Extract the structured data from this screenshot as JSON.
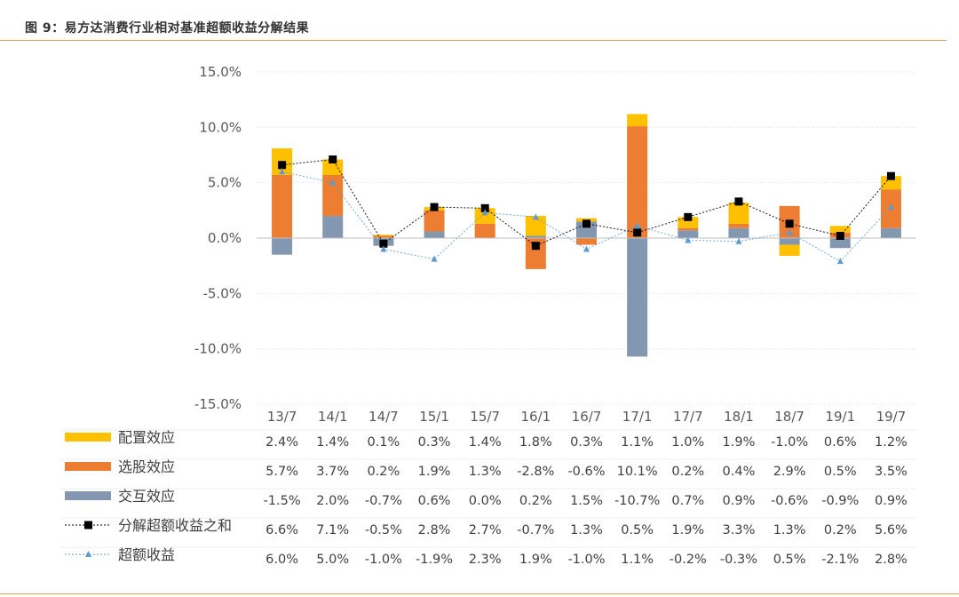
{
  "title": "图 9：易方达消费行业相对基准超额收益分解结果",
  "colors": {
    "allocation": "#ffc000",
    "selection": "#ed7d31",
    "interaction": "#8497b0",
    "decomposed_sum": "#000000",
    "excess_return": "#5b9bd5",
    "accent": "#f0a04b"
  },
  "chart_data": {
    "type": "bar",
    "stacked": true,
    "categories": [
      "13/7",
      "14/1",
      "14/7",
      "15/1",
      "15/7",
      "16/1",
      "16/7",
      "17/1",
      "17/7",
      "18/1",
      "18/7",
      "19/1",
      "19/7"
    ],
    "y_ticks": [
      "15.0%",
      "10.0%",
      "5.0%",
      "0.0%",
      "-5.0%",
      "-10.0%",
      "-15.0%"
    ],
    "ylim": [
      -15,
      15
    ],
    "grid": true,
    "legend_placement": "data-table-left",
    "series": [
      {
        "name": "配置效应",
        "kind": "bar",
        "color": "#ffc000",
        "values": [
          2.4,
          1.4,
          0.1,
          0.3,
          1.4,
          1.8,
          0.3,
          1.1,
          1.0,
          1.9,
          -1.0,
          0.6,
          1.2
        ],
        "labels": [
          "2.4%",
          "1.4%",
          "0.1%",
          "0.3%",
          "1.4%",
          "1.8%",
          "0.3%",
          "1.1%",
          "1.0%",
          "1.9%",
          "-1.0%",
          "0.6%",
          "1.2%"
        ]
      },
      {
        "name": "选股效应",
        "kind": "bar",
        "color": "#ed7d31",
        "values": [
          5.7,
          3.7,
          0.2,
          1.9,
          1.3,
          -2.8,
          -0.6,
          10.1,
          0.2,
          0.4,
          2.9,
          0.5,
          3.5
        ],
        "labels": [
          "5.7%",
          "3.7%",
          "0.2%",
          "1.9%",
          "1.3%",
          "-2.8%",
          "-0.6%",
          "10.1%",
          "0.2%",
          "0.4%",
          "2.9%",
          "0.5%",
          "3.5%"
        ]
      },
      {
        "name": "交互效应",
        "kind": "bar",
        "color": "#8497b0",
        "values": [
          -1.5,
          2.0,
          -0.7,
          0.6,
          0.0,
          0.2,
          1.5,
          -10.7,
          0.7,
          0.9,
          -0.6,
          -0.9,
          0.9
        ],
        "labels": [
          "-1.5%",
          "2.0%",
          "-0.7%",
          "0.6%",
          "0.0%",
          "0.2%",
          "1.5%",
          "-10.7%",
          "0.7%",
          "0.9%",
          "-0.6%",
          "-0.9%",
          "0.9%"
        ]
      },
      {
        "name": "分解超额收益之和",
        "kind": "line",
        "marker": "square",
        "color": "#000000",
        "values": [
          6.6,
          7.1,
          -0.5,
          2.8,
          2.7,
          -0.7,
          1.3,
          0.5,
          1.9,
          3.3,
          1.3,
          0.2,
          5.6
        ],
        "labels": [
          "6.6%",
          "7.1%",
          "-0.5%",
          "2.8%",
          "2.7%",
          "-0.7%",
          "1.3%",
          "0.5%",
          "1.9%",
          "3.3%",
          "1.3%",
          "0.2%",
          "5.6%"
        ]
      },
      {
        "name": "超额收益",
        "kind": "line",
        "marker": "triangle",
        "color": "#5b9bd5",
        "values": [
          6.0,
          5.0,
          -1.0,
          -1.9,
          2.3,
          1.9,
          -1.0,
          1.1,
          -0.2,
          -0.3,
          0.5,
          -2.1,
          2.8
        ],
        "labels": [
          "6.0%",
          "5.0%",
          "-1.0%",
          "-1.9%",
          "2.3%",
          "1.9%",
          "-1.0%",
          "1.1%",
          "-0.2%",
          "-0.3%",
          "0.5%",
          "-2.1%",
          "2.8%"
        ]
      }
    ]
  }
}
